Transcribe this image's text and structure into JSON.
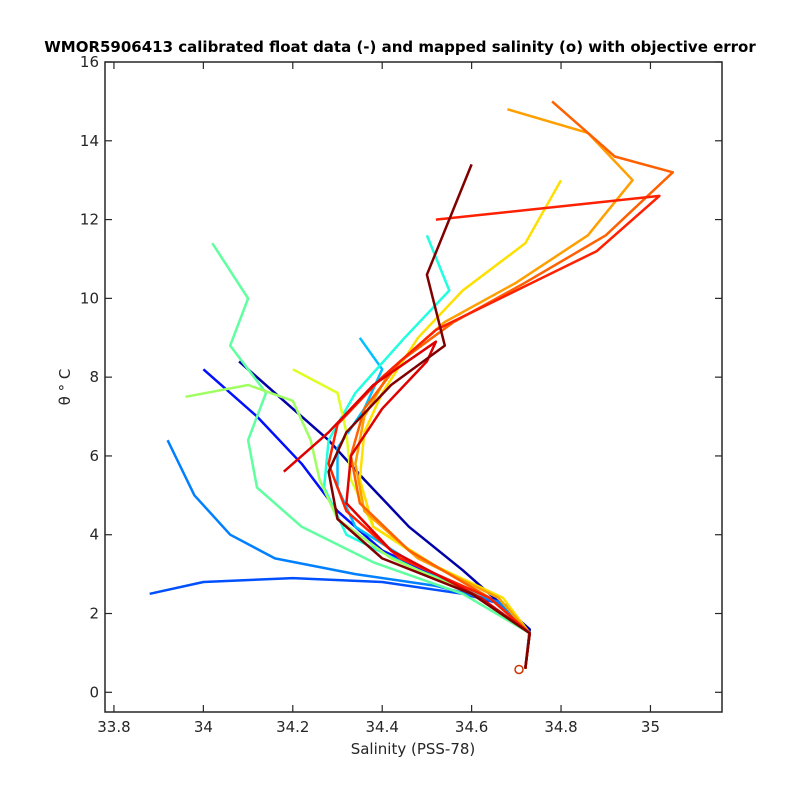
{
  "chart_data": {
    "type": "line",
    "title": "WMOR5906413 calibrated float data (-) and mapped salinity (o) with objective error",
    "xlabel": "Salinity (PSS-78)",
    "ylabel": "θ ° C",
    "xlim": [
      33.78,
      35.16
    ],
    "ylim": [
      -0.5,
      16
    ],
    "x_ticks": [
      "33.8",
      "34",
      "34.2",
      "34.4",
      "34.6",
      "34.8",
      "35"
    ],
    "y_ticks": [
      "0",
      "2",
      "4",
      "6",
      "8",
      "10",
      "12",
      "14",
      "16"
    ],
    "grid": false,
    "colormap": "jet",
    "series": [
      {
        "color": "#0000a8",
        "points": [
          [
            34.08,
            8.4
          ],
          [
            34.18,
            7.4
          ],
          [
            34.28,
            6.4
          ],
          [
            34.36,
            5.4
          ],
          [
            34.46,
            4.2
          ],
          [
            34.58,
            3.1
          ],
          [
            34.65,
            2.4
          ],
          [
            34.73,
            1.6
          ],
          [
            34.72,
            0.6
          ]
        ]
      },
      {
        "color": "#0010ff",
        "points": [
          [
            34.0,
            8.2
          ],
          [
            34.12,
            7.0
          ],
          [
            34.22,
            5.8
          ],
          [
            34.3,
            4.6
          ],
          [
            34.4,
            3.6
          ],
          [
            34.55,
            2.8
          ],
          [
            34.66,
            2.3
          ],
          [
            34.73,
            1.5
          ],
          [
            34.72,
            0.6
          ]
        ]
      },
      {
        "color": "#0050ff",
        "points": [
          [
            33.88,
            2.5
          ],
          [
            34.0,
            2.8
          ],
          [
            34.2,
            2.9
          ],
          [
            34.4,
            2.8
          ],
          [
            34.58,
            2.5
          ],
          [
            34.68,
            2.2
          ],
          [
            34.73,
            1.5
          ],
          [
            34.72,
            0.6
          ]
        ]
      },
      {
        "color": "#0080ff",
        "points": [
          [
            33.92,
            6.4
          ],
          [
            33.98,
            5.0
          ],
          [
            34.06,
            4.0
          ],
          [
            34.16,
            3.4
          ],
          [
            34.34,
            3.0
          ],
          [
            34.52,
            2.7
          ],
          [
            34.66,
            2.3
          ],
          [
            34.73,
            1.5
          ],
          [
            34.72,
            0.6
          ]
        ]
      },
      {
        "color": "#00c0ff",
        "points": [
          [
            34.35,
            9.0
          ],
          [
            34.4,
            8.2
          ],
          [
            34.36,
            7.2
          ],
          [
            34.3,
            6.2
          ],
          [
            34.3,
            5.2
          ],
          [
            34.34,
            4.2
          ],
          [
            34.48,
            3.2
          ],
          [
            34.64,
            2.4
          ],
          [
            34.73,
            1.5
          ],
          [
            34.72,
            0.6
          ]
        ]
      },
      {
        "color": "#20ffdf",
        "points": [
          [
            34.5,
            11.6
          ],
          [
            34.55,
            10.2
          ],
          [
            34.45,
            9.0
          ],
          [
            34.34,
            7.6
          ],
          [
            34.28,
            6.4
          ],
          [
            34.27,
            5.2
          ],
          [
            34.32,
            4.0
          ],
          [
            34.48,
            3.1
          ],
          [
            34.64,
            2.4
          ],
          [
            34.73,
            1.5
          ],
          [
            34.72,
            0.6
          ]
        ]
      },
      {
        "color": "#60ff9f",
        "points": [
          [
            34.02,
            11.4
          ],
          [
            34.1,
            10.0
          ],
          [
            34.06,
            8.8
          ],
          [
            34.14,
            7.6
          ],
          [
            34.1,
            6.4
          ],
          [
            34.12,
            5.2
          ],
          [
            34.22,
            4.2
          ],
          [
            34.38,
            3.3
          ],
          [
            34.58,
            2.5
          ],
          [
            34.73,
            1.5
          ],
          [
            34.72,
            0.6
          ]
        ]
      },
      {
        "color": "#9fff60",
        "points": [
          [
            33.96,
            7.5
          ],
          [
            34.1,
            7.8
          ],
          [
            34.2,
            7.4
          ],
          [
            34.24,
            6.4
          ],
          [
            34.26,
            5.4
          ],
          [
            34.3,
            4.4
          ],
          [
            34.42,
            3.4
          ],
          [
            34.6,
            2.5
          ],
          [
            34.73,
            1.5
          ],
          [
            34.72,
            0.6
          ]
        ]
      },
      {
        "color": "#dfff20",
        "points": [
          [
            34.2,
            8.2
          ],
          [
            34.3,
            7.6
          ],
          [
            34.32,
            6.6
          ],
          [
            34.33,
            5.4
          ],
          [
            34.38,
            4.2
          ],
          [
            34.5,
            3.3
          ],
          [
            34.66,
            2.4
          ],
          [
            34.73,
            1.5
          ],
          [
            34.72,
            0.6
          ]
        ]
      },
      {
        "color": "#ffdf00",
        "points": [
          [
            34.8,
            13.0
          ],
          [
            34.72,
            11.4
          ],
          [
            34.58,
            10.2
          ],
          [
            34.48,
            9.0
          ],
          [
            34.4,
            7.6
          ],
          [
            34.36,
            6.6
          ],
          [
            34.35,
            5.4
          ],
          [
            34.38,
            4.2
          ],
          [
            34.52,
            3.2
          ],
          [
            34.67,
            2.4
          ],
          [
            34.73,
            1.5
          ],
          [
            34.72,
            0.6
          ]
        ]
      },
      {
        "color": "#ff9f00",
        "points": [
          [
            34.68,
            14.8
          ],
          [
            34.86,
            14.2
          ],
          [
            34.96,
            13.0
          ],
          [
            34.86,
            11.6
          ],
          [
            34.7,
            10.4
          ],
          [
            34.54,
            9.4
          ],
          [
            34.42,
            8.2
          ],
          [
            34.36,
            7.0
          ],
          [
            34.34,
            5.8
          ],
          [
            34.36,
            4.6
          ],
          [
            34.48,
            3.4
          ],
          [
            34.66,
            2.4
          ],
          [
            34.73,
            1.5
          ],
          [
            34.72,
            0.6
          ]
        ]
      },
      {
        "color": "#ff6000",
        "points": [
          [
            34.78,
            15.0
          ],
          [
            34.92,
            13.6
          ],
          [
            35.05,
            13.2
          ],
          [
            34.9,
            11.6
          ],
          [
            34.72,
            10.4
          ],
          [
            34.56,
            9.4
          ],
          [
            34.44,
            8.4
          ],
          [
            34.36,
            7.2
          ],
          [
            34.33,
            6.0
          ],
          [
            34.35,
            4.8
          ],
          [
            34.46,
            3.6
          ],
          [
            34.64,
            2.4
          ],
          [
            34.73,
            1.5
          ],
          [
            34.72,
            0.6
          ]
        ]
      },
      {
        "color": "#ff2000",
        "points": [
          [
            34.52,
            12.0
          ],
          [
            35.02,
            12.6
          ],
          [
            34.88,
            11.2
          ],
          [
            34.7,
            10.2
          ],
          [
            34.52,
            9.2
          ],
          [
            34.4,
            8.0
          ],
          [
            34.3,
            6.8
          ],
          [
            34.28,
            5.8
          ],
          [
            34.32,
            4.6
          ],
          [
            34.44,
            3.4
          ],
          [
            34.64,
            2.4
          ],
          [
            34.73,
            1.5
          ],
          [
            34.72,
            0.6
          ]
        ]
      },
      {
        "color": "#df0000",
        "points": [
          [
            34.18,
            5.6
          ],
          [
            34.28,
            6.6
          ],
          [
            34.38,
            7.8
          ],
          [
            34.52,
            8.9
          ],
          [
            34.5,
            8.4
          ],
          [
            34.4,
            7.2
          ],
          [
            34.33,
            6.0
          ],
          [
            34.32,
            4.8
          ],
          [
            34.42,
            3.6
          ],
          [
            34.62,
            2.4
          ],
          [
            34.73,
            1.5
          ],
          [
            34.72,
            0.6
          ]
        ]
      },
      {
        "color": "#800000",
        "points": [
          [
            34.6,
            13.4
          ],
          [
            34.5,
            10.6
          ],
          [
            34.54,
            8.8
          ],
          [
            34.42,
            7.8
          ],
          [
            34.32,
            6.6
          ],
          [
            34.28,
            5.6
          ],
          [
            34.3,
            4.4
          ],
          [
            34.4,
            3.4
          ],
          [
            34.6,
            2.5
          ],
          [
            34.73,
            1.5
          ],
          [
            34.72,
            0.6
          ]
        ]
      }
    ],
    "mapped_points": [
      [
        34.706,
        0.58
      ]
    ]
  }
}
